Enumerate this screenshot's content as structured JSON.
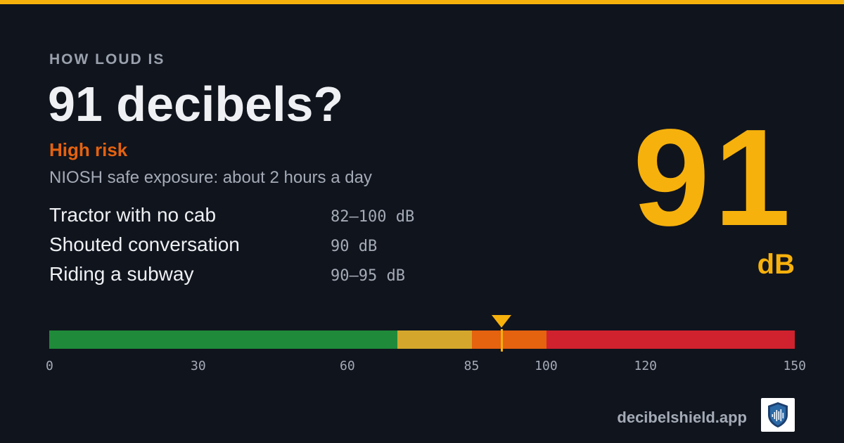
{
  "header": {
    "eyebrow": "HOW LOUD IS",
    "title": "91 decibels?"
  },
  "risk": {
    "label": "High risk",
    "color": "#e5620f"
  },
  "exposure_text": "NIOSH safe exposure: about 2 hours a day",
  "examples": [
    {
      "label": "Tractor with no cab",
      "value": "82–100 dB"
    },
    {
      "label": "Shouted conversation",
      "value": "90 dB"
    },
    {
      "label": "Riding a subway",
      "value": "90–95 dB"
    }
  ],
  "reading": {
    "value": "91",
    "unit": "dB",
    "color": "#f6b10c"
  },
  "meter": {
    "min": 0,
    "max": 150,
    "current": 91,
    "segments": [
      {
        "from": 0,
        "to": 70,
        "color": "#1f8a3a"
      },
      {
        "from": 70,
        "to": 85,
        "color": "#d4a72c"
      },
      {
        "from": 85,
        "to": 100,
        "color": "#e5620f"
      },
      {
        "from": 100,
        "to": 150,
        "color": "#d0222e"
      }
    ],
    "ticks": [
      "0",
      "30",
      "60",
      "85",
      "100",
      "120",
      "150"
    ]
  },
  "footer": {
    "brand": "decibelshield.app",
    "logo_icon": "shield-soundwave-icon"
  }
}
